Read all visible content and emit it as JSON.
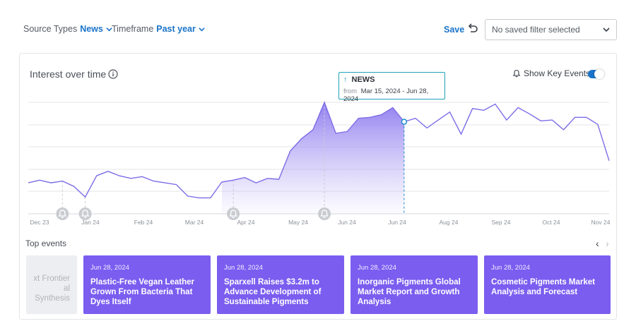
{
  "filters": {
    "source_label": "Source Types",
    "source_value": "News",
    "timeframe_label": "Timeframe",
    "timeframe_value": "Past year"
  },
  "toolbar": {
    "save_label": "Save",
    "saved_filter_placeholder": "No saved filter selected"
  },
  "card": {
    "title": "Interest over time",
    "key_events_label": "Show Key Events",
    "key_events_on": true
  },
  "tooltip": {
    "title": "NEWS",
    "from_label": "from",
    "range": "Mar 15, 2024 - Jun 28, 2024"
  },
  "chart_data": {
    "type": "line",
    "x_tick_labels": [
      "Dec 23",
      "Jan 24",
      "Feb 24",
      "Mar 24",
      "Apr 24",
      "May 24",
      "Jun 24",
      "Jun 24",
      "Aug 24",
      "Sep 24",
      "Oct 24",
      "Nov 24"
    ],
    "y_relative": [
      35,
      38,
      35,
      37,
      31,
      19,
      43,
      48,
      43,
      40,
      42,
      37,
      35,
      33,
      20,
      18,
      18,
      36,
      38,
      41,
      35,
      40,
      39,
      71,
      85,
      95,
      126,
      91,
      93,
      108,
      109,
      112,
      120,
      104,
      108,
      97,
      106,
      115,
      90,
      119,
      117,
      124,
      106,
      120,
      113,
      105,
      106,
      95,
      109,
      109,
      101,
      60
    ],
    "highlight_range": [
      0.33,
      0.5
    ],
    "hover_index": 33,
    "event_markers": [
      0.05,
      0.1,
      0.36,
      0.5
    ],
    "line_color": "#7b6de6",
    "fill_color": "#9d8cf0",
    "marker_color": "#c9ccd1",
    "active_marker_color": "#1a8fc9"
  },
  "top_events": {
    "title": "Top events",
    "items": [
      {
        "date": "",
        "headline": "xt Frontier\nal Synthesis",
        "faded": true
      },
      {
        "date": "Jun 28, 2024",
        "headline": "Plastic-Free Vegan Leather Grown From Bacteria That Dyes Itself"
      },
      {
        "date": "Jun 28, 2024",
        "headline": "Sparxell Raises $3.2m to Advance Development of Sustainable Pigments"
      },
      {
        "date": "Jun 28, 2024",
        "headline": "Inorganic Pigments Global Market Report and Growth Analysis"
      },
      {
        "date": "Jun 28, 2024",
        "headline": "Cosmetic Pigments Market Analysis and Forecast"
      }
    ]
  }
}
